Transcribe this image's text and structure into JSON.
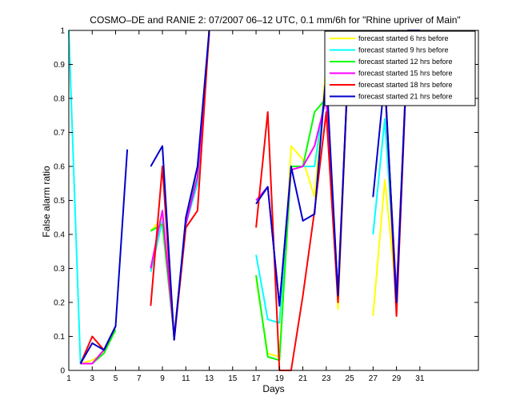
{
  "chart_data": {
    "type": "line",
    "title": "COSMO–DE and RANIE 2: 07/2007 06–12 UTC, 0.1 mm/6h for \"Rhine upriver of Main\"",
    "xlabel": "Days",
    "ylabel": "False alarm ratio",
    "xlim": [
      1,
      36
    ],
    "ylim": [
      0,
      1
    ],
    "xticks": [
      1,
      3,
      5,
      7,
      9,
      11,
      13,
      15,
      17,
      19,
      21,
      23,
      25,
      27,
      29,
      31
    ],
    "yticks": [
      0,
      0.1,
      0.2,
      0.3,
      0.4,
      0.5,
      0.6,
      0.7,
      0.8,
      0.9,
      1
    ],
    "ytick_labels": [
      "0",
      "0.1",
      "0.2",
      "0.3",
      "0.4",
      "0.5",
      "0.6",
      "0.7",
      "0.8",
      "0.9",
      "1"
    ],
    "grid": false,
    "legend_position": "top-right",
    "series": [
      {
        "name": "forecast started 6 hrs before",
        "color": "#ffff00",
        "x": [
          1,
          2,
          3,
          4,
          5,
          6,
          7,
          8,
          9,
          10,
          11,
          12,
          13,
          14,
          15,
          16,
          17,
          18,
          19,
          20,
          21,
          22,
          23,
          24,
          25,
          26,
          27,
          28,
          29,
          30,
          31,
          32
        ],
        "y": [
          null,
          0.02,
          0.03,
          0.05,
          0.13,
          null,
          null,
          0.41,
          0.45,
          0.1,
          0.43,
          0.55,
          0.98,
          null,
          null,
          null,
          0.27,
          0.05,
          0.04,
          0.66,
          0.62,
          0.51,
          0.9,
          0.18,
          1.0,
          null,
          0.16,
          0.56,
          0.22,
          1.0,
          1.0,
          null
        ]
      },
      {
        "name": "forecast started 9 hrs before",
        "color": "#00ffff",
        "x": [
          1,
          2,
          3,
          4,
          5,
          6,
          7,
          8,
          9,
          10,
          11,
          12,
          13,
          14,
          15,
          16,
          17,
          18,
          19,
          20,
          21,
          22,
          23,
          24,
          25,
          26,
          27,
          28,
          29,
          30,
          31,
          32
        ],
        "y": [
          1.0,
          0.02,
          0.02,
          0.06,
          0.13,
          null,
          null,
          0.29,
          0.44,
          0.1,
          0.43,
          0.55,
          0.99,
          null,
          null,
          null,
          0.34,
          0.15,
          0.14,
          0.6,
          0.6,
          0.6,
          0.84,
          0.22,
          1.0,
          null,
          0.4,
          0.74,
          0.22,
          1.0,
          1.0,
          null
        ]
      },
      {
        "name": "forecast started 12 hrs before",
        "color": "#00ff00",
        "x": [
          1,
          2,
          3,
          4,
          5,
          6,
          7,
          8,
          9,
          10,
          11,
          12,
          13,
          14,
          15,
          16,
          17,
          18,
          19,
          20,
          21,
          22,
          23,
          24,
          25,
          26,
          27,
          28,
          29,
          30,
          31,
          32
        ],
        "y": [
          null,
          0.02,
          0.02,
          0.05,
          0.12,
          null,
          null,
          0.41,
          0.43,
          0.1,
          0.43,
          0.6,
          0.99,
          null,
          null,
          null,
          0.28,
          0.04,
          0.03,
          0.6,
          0.6,
          0.76,
          0.8,
          0.22,
          1.0,
          null,
          0.95,
          0.84,
          0.22,
          1.0,
          1.0,
          null
        ]
      },
      {
        "name": "forecast started 15 hrs before",
        "color": "#ff00ff",
        "x": [
          1,
          2,
          3,
          4,
          5,
          6,
          7,
          8,
          9,
          10,
          11,
          12,
          13,
          14,
          15,
          16,
          17,
          18,
          19,
          20,
          21,
          22,
          23,
          24,
          25,
          26,
          27,
          28,
          29,
          30,
          31,
          32
        ],
        "y": [
          null,
          0.02,
          0.02,
          0.06,
          0.13,
          null,
          null,
          0.3,
          0.47,
          0.1,
          0.43,
          0.57,
          0.99,
          null,
          null,
          null,
          0.5,
          0.54,
          0.19,
          0.59,
          0.6,
          0.66,
          0.8,
          0.23,
          1.0,
          null,
          0.95,
          0.84,
          0.22,
          1.0,
          1.0,
          null
        ]
      },
      {
        "name": "forecast started 18 hrs before",
        "color": "#ff0000",
        "x": [
          1,
          2,
          3,
          4,
          5,
          6,
          7,
          8,
          9,
          10,
          11,
          12,
          13,
          14,
          15,
          16,
          17,
          18,
          19,
          20,
          21,
          22,
          23,
          24,
          25,
          26,
          27,
          28,
          29,
          30,
          31,
          32
        ],
        "y": [
          null,
          0.02,
          0.1,
          0.06,
          0.13,
          null,
          null,
          0.19,
          0.6,
          0.09,
          0.42,
          0.47,
          1.0,
          null,
          null,
          null,
          0.42,
          0.76,
          0.0,
          0.0,
          0.22,
          0.47,
          0.76,
          0.2,
          1.0,
          null,
          1.0,
          0.86,
          0.16,
          1.0,
          1.0,
          null
        ]
      },
      {
        "name": "forecast started 21 hrs before",
        "color": "#0000cc",
        "x": [
          1,
          2,
          3,
          4,
          5,
          6,
          7,
          8,
          9,
          10,
          11,
          12,
          13,
          14,
          15,
          16,
          17,
          18,
          19,
          20,
          21,
          22,
          23,
          24,
          25,
          26,
          27,
          28,
          29,
          30,
          31,
          32
        ],
        "y": [
          null,
          0.02,
          0.08,
          0.06,
          0.13,
          0.65,
          null,
          0.6,
          0.66,
          0.09,
          0.45,
          0.6,
          1.0,
          null,
          null,
          null,
          0.49,
          0.54,
          0.19,
          0.6,
          0.44,
          0.46,
          0.88,
          0.22,
          1.0,
          null,
          0.51,
          0.86,
          0.2,
          1.0,
          1.0,
          null
        ]
      }
    ]
  }
}
